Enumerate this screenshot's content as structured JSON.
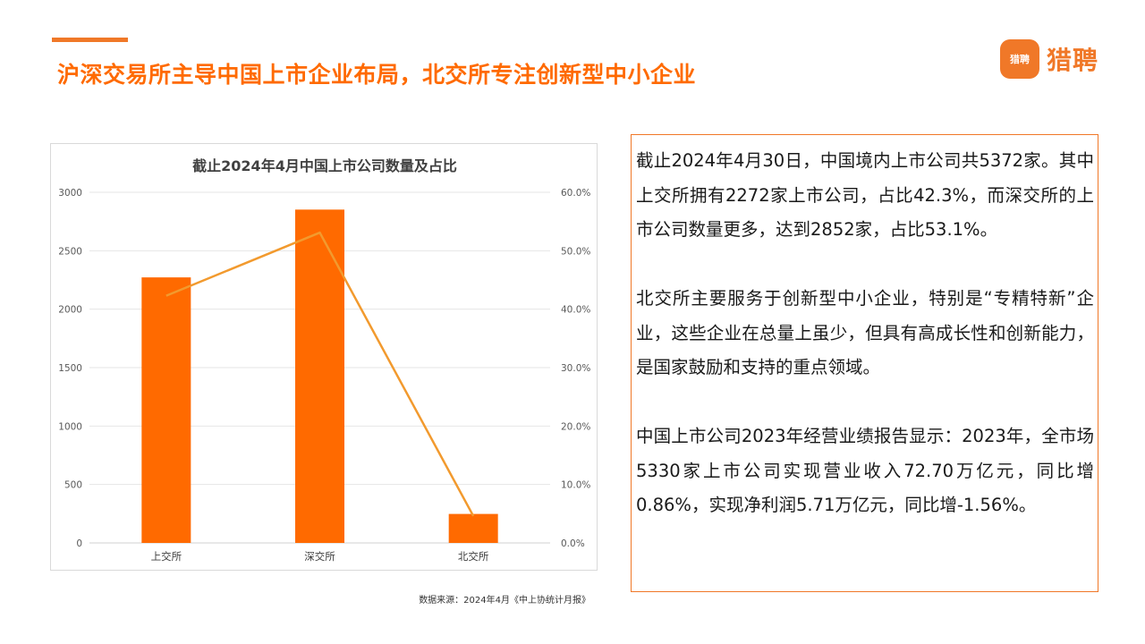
{
  "colors": {
    "accent": "#f07828",
    "bar": "#ff6a00",
    "line": "#f29a2e",
    "title": "#ff6a00"
  },
  "header": {
    "title": "沪深交易所主导中国上市企业布局，北交所专注创新型中小企业",
    "logo_badge": "猎聘",
    "logo_text": "猎聘"
  },
  "chart_data": {
    "type": "bar",
    "title": "截止2024年4月中国上市公司数量及占比",
    "categories": [
      "上交所",
      "深交所",
      "北交所"
    ],
    "series": [
      {
        "type": "bar",
        "axis": "left",
        "values": [
          2272,
          2852,
          248
        ]
      },
      {
        "type": "line",
        "axis": "right",
        "values": [
          42.3,
          53.1,
          4.6
        ]
      }
    ],
    "ylim": [
      0,
      3000
    ],
    "yticks": [
      "0",
      "500",
      "1000",
      "1500",
      "2000",
      "2500",
      "3000"
    ],
    "y2lim": [
      0,
      60
    ],
    "y2ticks": [
      "0.0%",
      "10.0%",
      "20.0%",
      "30.0%",
      "40.0%",
      "50.0%",
      "60.0%"
    ],
    "grid": true
  },
  "source": "数据来源：2024年4月《中上协统计月报》",
  "text_panel": {
    "para1": "截止2024年4月30日，中国境内上市公司共5372家。其中上交所拥有2272家上市公司，占比42.3%，而深交所的上市公司数量更多，达到2852家，占比53.1%。",
    "para2": "北交所主要服务于创新型中小企业，特别是“专精特新”企业，这些企业在总量上虽少，但具有高成长性和创新能力，是国家鼓励和支持的重点领域。",
    "para3": "中国上市公司2023年经营业绩报告显示：2023年，全市场5330家上市公司实现营业收入72.70万亿元，同比增0.86%，实现净利润5.71万亿元，同比增-1.56%。"
  }
}
